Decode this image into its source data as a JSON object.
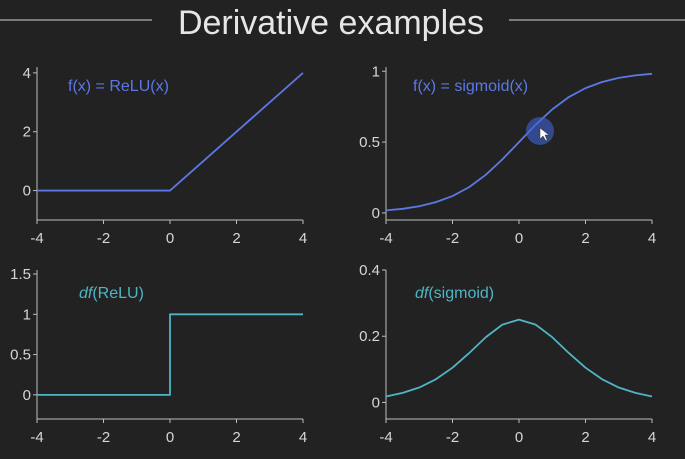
{
  "title": "Derivative examples",
  "colors": {
    "background": "#222222",
    "axis": "#bdbdbd",
    "tick_label": "#d6d6d6",
    "title": "#e6e6e6",
    "function_line": "#5b78e6",
    "derivative_line": "#4fb5c6"
  },
  "chart_data": [
    {
      "type": "line",
      "annotation": {
        "prefix": "",
        "text": "f(x) = ReLU(x)"
      },
      "line_color": "#5b78e6",
      "xlim": [
        -4,
        4
      ],
      "ylim": [
        -1,
        4.2
      ],
      "xticks": [
        -4,
        -2,
        0,
        2,
        4
      ],
      "yticks": [
        0,
        2,
        4
      ],
      "ytick_labels": [
        "0",
        "2",
        "4"
      ],
      "x": [
        -4,
        -3,
        -2,
        -1,
        0,
        1,
        2,
        3,
        4
      ],
      "y": [
        0,
        0,
        0,
        0,
        0,
        1,
        2,
        3,
        4
      ]
    },
    {
      "type": "line",
      "annotation": {
        "prefix": "",
        "text": "f(x) = sigmoid(x)"
      },
      "line_color": "#5b78e6",
      "xlim": [
        -4,
        4
      ],
      "ylim": [
        -0.05,
        1.03
      ],
      "xticks": [
        -4,
        -2,
        0,
        2,
        4
      ],
      "yticks": [
        0,
        0.5,
        1
      ],
      "ytick_labels": [
        "0",
        "0.5",
        "1"
      ],
      "x": [
        -4,
        -3.5,
        -3,
        -2.5,
        -2,
        -1.5,
        -1,
        -0.5,
        0,
        0.5,
        1,
        1.5,
        2,
        2.5,
        3,
        3.5,
        4
      ],
      "y": [
        0.018,
        0.029,
        0.047,
        0.076,
        0.119,
        0.182,
        0.269,
        0.378,
        0.5,
        0.622,
        0.731,
        0.818,
        0.881,
        0.924,
        0.953,
        0.971,
        0.982
      ]
    },
    {
      "type": "line",
      "annotation": {
        "prefix": "df",
        "text": "(ReLU)"
      },
      "line_color": "#4fb5c6",
      "xlim": [
        -4,
        4
      ],
      "ylim": [
        -0.3,
        1.55
      ],
      "xticks": [
        -4,
        -2,
        0,
        2,
        4
      ],
      "yticks": [
        0,
        0.5,
        1,
        1.5
      ],
      "ytick_labels": [
        "0",
        "0.5",
        "1",
        "1.5"
      ],
      "x": [
        -4,
        0,
        0,
        4
      ],
      "y": [
        0,
        0,
        1,
        1
      ]
    },
    {
      "type": "line",
      "annotation": {
        "prefix": "df",
        "text": "(sigmoid)"
      },
      "line_color": "#4fb5c6",
      "xlim": [
        -4,
        4
      ],
      "ylim": [
        -0.05,
        0.4
      ],
      "xticks": [
        -4,
        -2,
        0,
        2,
        4
      ],
      "yticks": [
        0,
        0.2,
        0.4
      ],
      "ytick_labels": [
        "0",
        "0.2",
        "0.4"
      ],
      "x": [
        -4,
        -3.5,
        -3,
        -2.5,
        -2,
        -1.5,
        -1,
        -0.5,
        0,
        0.5,
        1,
        1.5,
        2,
        2.5,
        3,
        3.5,
        4
      ],
      "y": [
        0.018,
        0.029,
        0.045,
        0.07,
        0.105,
        0.149,
        0.197,
        0.235,
        0.25,
        0.235,
        0.197,
        0.149,
        0.105,
        0.07,
        0.045,
        0.029,
        0.018
      ]
    }
  ]
}
